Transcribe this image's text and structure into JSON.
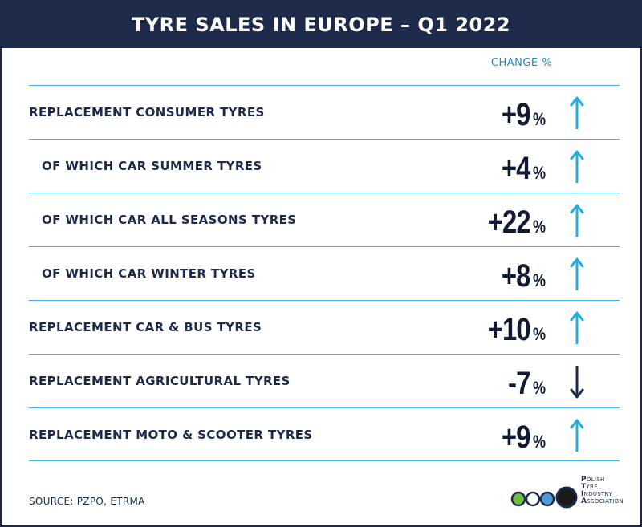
{
  "header": {
    "title": "TYRE SALES IN EUROPE – Q1 2022"
  },
  "column_label": "CHANGE %",
  "rows": [
    {
      "label": "REPLACEMENT CONSUMER TYRES",
      "value": "+9",
      "unit": "%",
      "direction": "up",
      "indent": false
    },
    {
      "label": "OF WHICH CAR SUMMER TYRES",
      "value": "+4",
      "unit": "%",
      "direction": "up",
      "indent": true
    },
    {
      "label": "OF WHICH CAR ALL SEASONS TYRES",
      "value": "+22",
      "unit": "%",
      "direction": "up",
      "indent": true
    },
    {
      "label": "OF WHICH CAR WINTER TYRES",
      "value": "+8",
      "unit": "%",
      "direction": "up",
      "indent": true
    },
    {
      "label": "REPLACEMENT CAR & BUS TYRES",
      "value": "+10",
      "unit": "%",
      "direction": "up",
      "indent": false
    },
    {
      "label": "REPLACEMENT AGRICULTURAL TYRES",
      "value": "-7",
      "unit": "%",
      "direction": "down",
      "indent": false
    },
    {
      "label": "REPLACEMENT MOTO & SCOOTER TYRES",
      "value": "+9",
      "unit": "%",
      "direction": "up",
      "indent": false
    }
  ],
  "footer": {
    "source": "SOURCE: PZPO, ETRMA"
  },
  "logo": {
    "lines": [
      {
        "initial": "P",
        "rest": "OLISH"
      },
      {
        "initial": "T",
        "rest": "YRE"
      },
      {
        "initial": "I",
        "rest": "NDUSTRY"
      },
      {
        "initial": "A",
        "rest": "SSOCIATION"
      }
    ],
    "circle_colors": [
      "#6cbf3f",
      "#ffffff",
      "#4a9bd6",
      "#1a1a1a"
    ]
  },
  "colors": {
    "navy": "#1d2a4a",
    "accent": "#3fb7e6",
    "arrow_up": "#22aee0",
    "arrow_down": "#1d2a4a"
  }
}
